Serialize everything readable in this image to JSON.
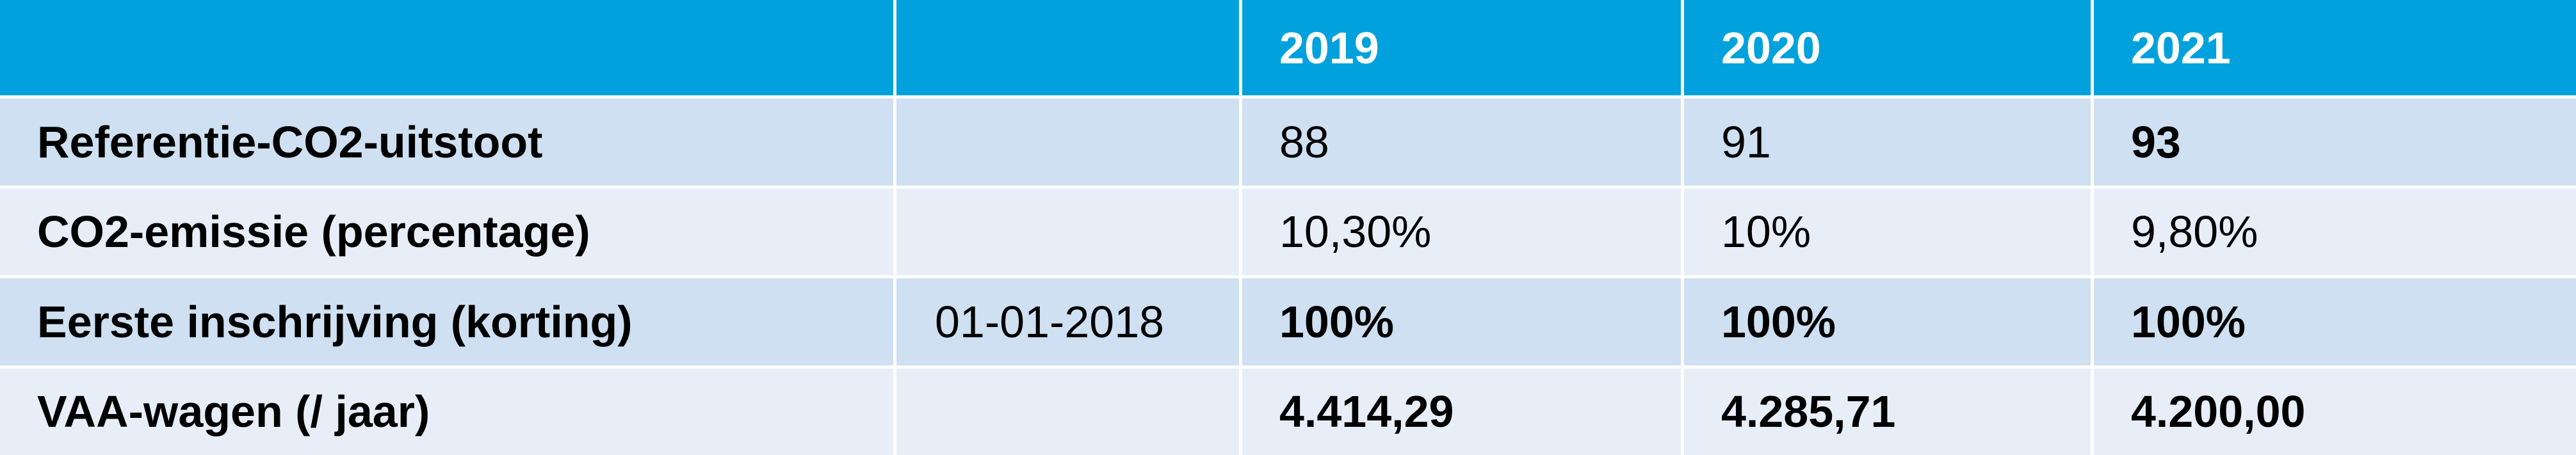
{
  "colors": {
    "header_bg": "#00a1dd",
    "row_dark": "#cee0f1",
    "row_light": "#e8eef8"
  },
  "header": {
    "col0": "",
    "col1": "",
    "years": [
      "2019",
      "2020",
      "2021"
    ]
  },
  "rows": [
    {
      "label": "Referentie-CO2-uitstoot",
      "extra": "",
      "values": [
        "88",
        "91",
        "93"
      ]
    },
    {
      "label": "CO2-emissie (percentage)",
      "extra": "",
      "values": [
        "10,30%",
        "10%",
        "9,80%"
      ]
    },
    {
      "label": "Eerste inschrijving (korting)",
      "extra": "01-01-2018",
      "values": [
        "100%",
        "100%",
        "100%"
      ]
    },
    {
      "label": "VAA-wagen (/ jaar)",
      "extra": "",
      "values": [
        "4.414,29",
        "4.285,71",
        "4.200,00"
      ]
    }
  ]
}
